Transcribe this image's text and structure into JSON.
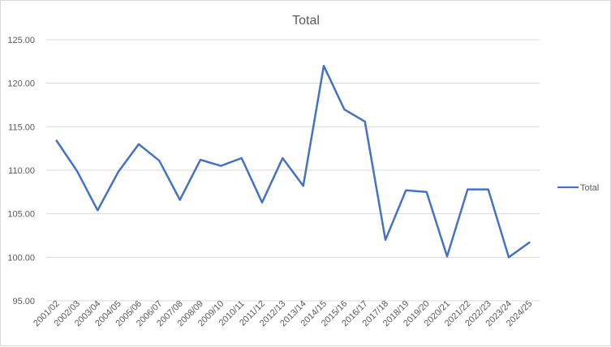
{
  "chart_data": {
    "type": "line",
    "title": "Total",
    "xlabel": "",
    "ylabel": "",
    "ylim": [
      95,
      125
    ],
    "yticks": [
      "95.00",
      "100.00",
      "105.00",
      "110.00",
      "115.00",
      "120.00",
      "125.00"
    ],
    "grid": "horizontal",
    "legend": "right",
    "categories": [
      "2001/02",
      "2002/03",
      "2003/04",
      "2004/05",
      "2005/06",
      "2006/07",
      "2007/08",
      "2008/09",
      "2009/10",
      "2010/11",
      "2011/12",
      "2012/13",
      "2013/14",
      "2014/15",
      "2015/16",
      "2016/17",
      "2017/18",
      "2018/19",
      "2019/20",
      "2020/21",
      "2021/22",
      "2022/23",
      "2023/24",
      "2024/25"
    ],
    "series": [
      {
        "name": "Total",
        "color": "#4472c4",
        "values": [
          113.4,
          109.9,
          105.4,
          109.8,
          113.0,
          111.1,
          106.6,
          111.2,
          110.5,
          111.4,
          106.3,
          111.4,
          108.2,
          122.0,
          117.0,
          115.6,
          102.0,
          107.7,
          107.5,
          100.1,
          107.8,
          107.8,
          100.0,
          101.7
        ]
      }
    ]
  }
}
